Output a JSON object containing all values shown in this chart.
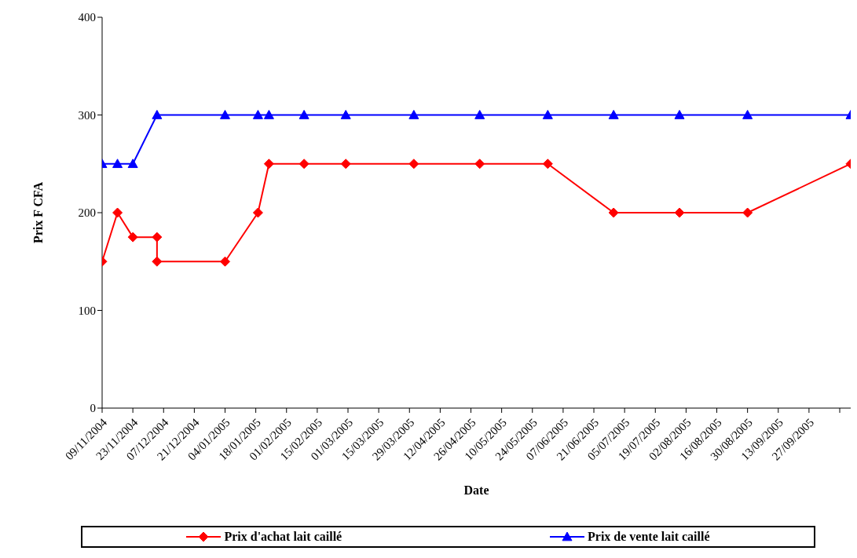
{
  "chart_data": {
    "type": "line",
    "xlabel": "Date",
    "ylabel": "Prix F CFA",
    "x": [
      "2004-11-09",
      "2004-11-16",
      "2004-11-23",
      "2004-12-04",
      "2004-12-04",
      "2005-01-04",
      "2005-01-19",
      "2005-01-24",
      "2005-02-09",
      "2005-02-28",
      "2005-03-31",
      "2005-04-30",
      "2005-05-31",
      "2005-06-30",
      "2005-07-30",
      "2005-08-30",
      "2005-10-16"
    ],
    "series": [
      {
        "name": "Prix d'achat lait caillé",
        "color": "#ff0000",
        "marker": "diamond",
        "values": [
          150,
          200,
          175,
          175,
          150,
          150,
          200,
          250,
          250,
          250,
          250,
          250,
          250,
          200,
          200,
          200,
          250
        ]
      },
      {
        "name": "Prix de vente lait caillé",
        "color": "#0000ff",
        "marker": "triangle",
        "x": [
          "2004-11-09",
          "2004-11-16",
          "2004-11-23",
          "2004-12-04",
          "2005-01-04",
          "2005-01-19",
          "2005-01-24",
          "2005-02-09",
          "2005-02-28",
          "2005-03-31",
          "2005-04-30",
          "2005-05-31",
          "2005-06-30",
          "2005-07-30",
          "2005-08-30",
          "2005-10-16"
        ],
        "values": [
          250,
          250,
          250,
          300,
          300,
          300,
          300,
          300,
          300,
          300,
          300,
          300,
          300,
          300,
          300,
          300
        ]
      }
    ],
    "xlim": [
      "2004-11-09",
      "2005-10-16"
    ],
    "xticks": [
      {
        "value": "2004-11-09",
        "label": "09/11/2004"
      },
      {
        "value": "2004-11-23",
        "label": "23/11/2004"
      },
      {
        "value": "2004-12-07",
        "label": "07/12/2004"
      },
      {
        "value": "2004-12-21",
        "label": "21/12/2004"
      },
      {
        "value": "2005-01-04",
        "label": "04/01/2005"
      },
      {
        "value": "2005-01-18",
        "label": "18/01/2005"
      },
      {
        "value": "2005-02-01",
        "label": "01/02/2005"
      },
      {
        "value": "2005-02-15",
        "label": "15/02/2005"
      },
      {
        "value": "2005-03-01",
        "label": "01/03/2005"
      },
      {
        "value": "2005-03-15",
        "label": "15/03/2005"
      },
      {
        "value": "2005-03-29",
        "label": "29/03/2005"
      },
      {
        "value": "2005-04-12",
        "label": "12/04/2005"
      },
      {
        "value": "2005-04-26",
        "label": "26/04/2005"
      },
      {
        "value": "2005-05-10",
        "label": "10/05/2005"
      },
      {
        "value": "2005-05-24",
        "label": "24/05/2005"
      },
      {
        "value": "2005-06-07",
        "label": "07/06/2005"
      },
      {
        "value": "2005-06-21",
        "label": "21/06/2005"
      },
      {
        "value": "2005-07-05",
        "label": "05/07/2005"
      },
      {
        "value": "2005-07-19",
        "label": "19/07/2005"
      },
      {
        "value": "2005-08-02",
        "label": "02/08/2005"
      },
      {
        "value": "2005-08-16",
        "label": "16/08/2005"
      },
      {
        "value": "2005-08-30",
        "label": "30/08/2005"
      },
      {
        "value": "2005-09-13",
        "label": "13/09/2005"
      },
      {
        "value": "2005-09-27",
        "label": "27/09/2005"
      },
      {
        "value": "2005-10-11",
        "label": null
      }
    ],
    "ylim": [
      0,
      400
    ],
    "yticks": [
      0,
      100,
      200,
      300,
      400
    ],
    "grid": false,
    "legend": "bottom",
    "line_style": "solid"
  }
}
